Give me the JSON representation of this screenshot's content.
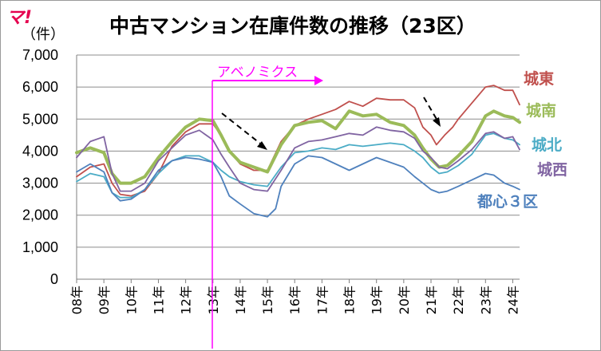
{
  "logo": {
    "text": "マ!",
    "color": "#e5004f"
  },
  "header": {
    "unit": "（件）",
    "title": "中古マンション在庫件数の推移（23区）"
  },
  "annotation": {
    "text": "アベノミクス",
    "color": "#ff00ff"
  },
  "colors": {
    "gridline": "#8c8c8c"
  },
  "chart_data": {
    "type": "line",
    "title": "中古マンション在庫件数の推移（23区）",
    "ylabel": "（件）",
    "ylim": [
      0,
      7000
    ],
    "yticks": [
      "0",
      "1,000",
      "2,000",
      "3,000",
      "4,000",
      "5,000",
      "6,000",
      "7,000"
    ],
    "xticks": [
      "08年",
      "09年",
      "10年",
      "11年",
      "12年",
      "13年",
      "14年",
      "15年",
      "16年",
      "17年",
      "18年",
      "19年",
      "20年",
      "21年",
      "22年",
      "23年",
      "24年"
    ],
    "x_range": [
      2008.0,
      2024.25
    ],
    "grid": true,
    "event_line_x": 2013.0,
    "series": [
      {
        "name": "城東",
        "color": "#c0504d",
        "bold": false,
        "points": [
          [
            2008.0,
            3200
          ],
          [
            2008.5,
            3500
          ],
          [
            2009.0,
            3600
          ],
          [
            2009.3,
            3000
          ],
          [
            2009.6,
            2650
          ],
          [
            2010.0,
            2600
          ],
          [
            2010.5,
            2750
          ],
          [
            2011.0,
            3300
          ],
          [
            2011.5,
            4150
          ],
          [
            2012.0,
            4600
          ],
          [
            2012.5,
            4850
          ],
          [
            2013.0,
            4850
          ],
          [
            2013.3,
            4500
          ],
          [
            2013.6,
            4000
          ],
          [
            2014.0,
            3600
          ],
          [
            2014.5,
            3400
          ],
          [
            2015.0,
            3400
          ],
          [
            2015.5,
            4300
          ],
          [
            2016.0,
            4800
          ],
          [
            2016.5,
            5000
          ],
          [
            2017.0,
            5150
          ],
          [
            2017.5,
            5300
          ],
          [
            2018.0,
            5550
          ],
          [
            2018.5,
            5400
          ],
          [
            2019.0,
            5650
          ],
          [
            2019.5,
            5600
          ],
          [
            2020.0,
            5600
          ],
          [
            2020.4,
            5350
          ],
          [
            2020.7,
            4750
          ],
          [
            2021.0,
            4500
          ],
          [
            2021.2,
            4200
          ],
          [
            2021.5,
            4500
          ],
          [
            2021.8,
            4750
          ],
          [
            2022.0,
            5000
          ],
          [
            2022.5,
            5500
          ],
          [
            2023.0,
            6000
          ],
          [
            2023.3,
            6050
          ],
          [
            2023.7,
            5900
          ],
          [
            2024.0,
            5900
          ],
          [
            2024.25,
            5450
          ]
        ]
      },
      {
        "name": "城南",
        "color": "#9bbb59",
        "bold": true,
        "points": [
          [
            2008.0,
            3950
          ],
          [
            2008.5,
            4100
          ],
          [
            2009.0,
            3950
          ],
          [
            2009.3,
            3300
          ],
          [
            2009.6,
            3000
          ],
          [
            2010.0,
            3000
          ],
          [
            2010.5,
            3200
          ],
          [
            2011.0,
            3800
          ],
          [
            2011.5,
            4300
          ],
          [
            2012.0,
            4750
          ],
          [
            2012.5,
            5000
          ],
          [
            2013.0,
            4950
          ],
          [
            2013.3,
            4500
          ],
          [
            2013.6,
            4000
          ],
          [
            2014.0,
            3650
          ],
          [
            2014.5,
            3500
          ],
          [
            2015.0,
            3350
          ],
          [
            2015.5,
            4200
          ],
          [
            2016.0,
            4800
          ],
          [
            2016.5,
            4900
          ],
          [
            2017.0,
            4950
          ],
          [
            2017.5,
            4700
          ],
          [
            2018.0,
            5250
          ],
          [
            2018.5,
            5100
          ],
          [
            2019.0,
            5150
          ],
          [
            2019.5,
            4900
          ],
          [
            2020.0,
            4800
          ],
          [
            2020.4,
            4500
          ],
          [
            2020.7,
            4100
          ],
          [
            2021.0,
            3750
          ],
          [
            2021.3,
            3500
          ],
          [
            2021.6,
            3550
          ],
          [
            2022.0,
            3850
          ],
          [
            2022.5,
            4300
          ],
          [
            2023.0,
            5100
          ],
          [
            2023.3,
            5250
          ],
          [
            2023.7,
            5100
          ],
          [
            2024.0,
            5050
          ],
          [
            2024.25,
            4900
          ]
        ]
      },
      {
        "name": "城北",
        "color": "#4bacc6",
        "bold": false,
        "points": [
          [
            2008.0,
            3050
          ],
          [
            2008.5,
            3300
          ],
          [
            2009.0,
            3200
          ],
          [
            2009.3,
            2700
          ],
          [
            2009.6,
            2550
          ],
          [
            2010.0,
            2550
          ],
          [
            2010.5,
            2800
          ],
          [
            2011.0,
            3300
          ],
          [
            2011.5,
            3700
          ],
          [
            2012.0,
            3850
          ],
          [
            2012.5,
            3850
          ],
          [
            2013.0,
            3650
          ],
          [
            2013.3,
            3400
          ],
          [
            2013.6,
            3200
          ],
          [
            2014.0,
            3050
          ],
          [
            2014.5,
            2950
          ],
          [
            2015.0,
            2900
          ],
          [
            2015.5,
            3500
          ],
          [
            2016.0,
            3950
          ],
          [
            2016.5,
            4000
          ],
          [
            2017.0,
            4100
          ],
          [
            2017.5,
            4050
          ],
          [
            2018.0,
            4200
          ],
          [
            2018.5,
            4150
          ],
          [
            2019.0,
            4200
          ],
          [
            2019.5,
            4250
          ],
          [
            2020.0,
            4200
          ],
          [
            2020.4,
            4000
          ],
          [
            2020.7,
            3800
          ],
          [
            2021.0,
            3500
          ],
          [
            2021.3,
            3300
          ],
          [
            2021.6,
            3350
          ],
          [
            2022.0,
            3550
          ],
          [
            2022.5,
            3900
          ],
          [
            2023.0,
            4500
          ],
          [
            2023.3,
            4550
          ],
          [
            2023.7,
            4400
          ],
          [
            2024.0,
            4350
          ],
          [
            2024.25,
            4200
          ]
        ]
      },
      {
        "name": "城西",
        "color": "#8064a2",
        "bold": false,
        "points": [
          [
            2008.0,
            3800
          ],
          [
            2008.5,
            4300
          ],
          [
            2009.0,
            4450
          ],
          [
            2009.3,
            3300
          ],
          [
            2009.6,
            2750
          ],
          [
            2010.0,
            2750
          ],
          [
            2010.5,
            3000
          ],
          [
            2011.0,
            3700
          ],
          [
            2011.5,
            4100
          ],
          [
            2012.0,
            4500
          ],
          [
            2012.5,
            4650
          ],
          [
            2013.0,
            4350
          ],
          [
            2013.3,
            3900
          ],
          [
            2013.6,
            3500
          ],
          [
            2014.0,
            3000
          ],
          [
            2014.5,
            2800
          ],
          [
            2015.0,
            2750
          ],
          [
            2015.5,
            3400
          ],
          [
            2016.0,
            4100
          ],
          [
            2016.5,
            4300
          ],
          [
            2017.0,
            4350
          ],
          [
            2017.5,
            4450
          ],
          [
            2018.0,
            4550
          ],
          [
            2018.5,
            4500
          ],
          [
            2019.0,
            4750
          ],
          [
            2019.5,
            4650
          ],
          [
            2020.0,
            4600
          ],
          [
            2020.4,
            4400
          ],
          [
            2020.7,
            4000
          ],
          [
            2021.0,
            3800
          ],
          [
            2021.3,
            3500
          ],
          [
            2021.6,
            3450
          ],
          [
            2022.0,
            3700
          ],
          [
            2022.5,
            4050
          ],
          [
            2023.0,
            4550
          ],
          [
            2023.3,
            4600
          ],
          [
            2023.7,
            4400
          ],
          [
            2024.0,
            4450
          ],
          [
            2024.25,
            4050
          ]
        ]
      },
      {
        "name": "都心３区",
        "color": "#4f81bd",
        "bold": false,
        "points": [
          [
            2008.0,
            3350
          ],
          [
            2008.5,
            3600
          ],
          [
            2009.0,
            3350
          ],
          [
            2009.3,
            2700
          ],
          [
            2009.6,
            2450
          ],
          [
            2010.0,
            2500
          ],
          [
            2010.5,
            2800
          ],
          [
            2011.0,
            3400
          ],
          [
            2011.5,
            3700
          ],
          [
            2012.0,
            3800
          ],
          [
            2012.5,
            3750
          ],
          [
            2013.0,
            3650
          ],
          [
            2013.3,
            3200
          ],
          [
            2013.6,
            2600
          ],
          [
            2014.0,
            2350
          ],
          [
            2014.5,
            2050
          ],
          [
            2015.0,
            1950
          ],
          [
            2015.3,
            2200
          ],
          [
            2015.5,
            2900
          ],
          [
            2016.0,
            3600
          ],
          [
            2016.5,
            3850
          ],
          [
            2017.0,
            3800
          ],
          [
            2017.5,
            3600
          ],
          [
            2018.0,
            3400
          ],
          [
            2018.5,
            3600
          ],
          [
            2019.0,
            3800
          ],
          [
            2019.5,
            3650
          ],
          [
            2020.0,
            3500
          ],
          [
            2020.4,
            3200
          ],
          [
            2020.7,
            3000
          ],
          [
            2021.0,
            2800
          ],
          [
            2021.3,
            2700
          ],
          [
            2021.6,
            2750
          ],
          [
            2022.0,
            2900
          ],
          [
            2022.5,
            3100
          ],
          [
            2023.0,
            3300
          ],
          [
            2023.3,
            3250
          ],
          [
            2023.7,
            3000
          ],
          [
            2024.0,
            2900
          ],
          [
            2024.25,
            2800
          ]
        ]
      }
    ]
  }
}
